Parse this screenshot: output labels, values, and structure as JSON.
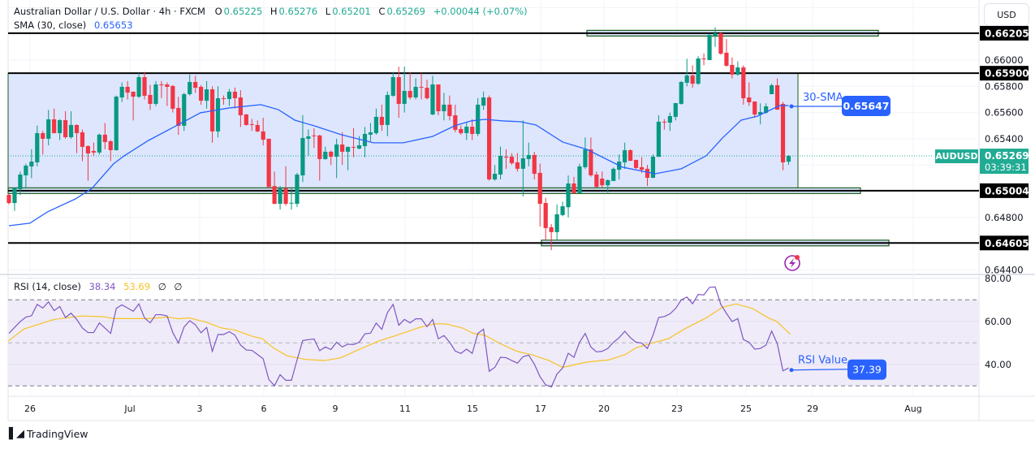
{
  "header": {
    "symbol_title": "Australian Dollar / U.S. Dollar · 4h · FXCM",
    "open_label": "O",
    "open": "0.65225",
    "high_label": "H",
    "high": "0.65276",
    "low_label": "L",
    "low": "0.65201",
    "close_label": "C",
    "close": "0.65269",
    "change": "+0.00044 (+0.07%)",
    "sma_label": "SMA (30, close)",
    "sma_value": "0.65653"
  },
  "rsi_legend": {
    "label": "RSI (14, close)",
    "rsi": "38.34",
    "ma": "53.69",
    "extra1": "∅",
    "extra2": "∅"
  },
  "currency_button": "USD",
  "branding": {
    "logo_mark": "TV",
    "name": "TradingView"
  },
  "colors": {
    "up": "#089981",
    "down": "#f23645",
    "sma": "#2962ff",
    "rsi": "#7e57c2",
    "rsi_ma": "#f7c325",
    "range_fill": "#dbe5fd",
    "zone_border": "#1b5e20",
    "last_price": "#22ab94",
    "callout": "#2962ff"
  },
  "annotations": {
    "sma_callout_label": "30-SMA",
    "sma_callout_value": "0.65647",
    "rsi_callout_label": "RSI Value",
    "rsi_callout_value": "37.39",
    "alert_icon": "lightning-icon"
  },
  "last_price": {
    "symbol": "AUDUSD",
    "price": "0.65269",
    "countdown": "03:39:31"
  },
  "chart_data": {
    "type": "candlestick",
    "interval": "4h",
    "price_axis": {
      "ylim": [
        0.6436,
        0.66465
      ],
      "ticks": [
        "0.66000",
        "0.65800",
        "0.65600",
        "0.65400",
        "0.64800",
        "0.64400"
      ]
    },
    "level_lines": [
      "0.66205",
      "0.65900",
      "0.65004",
      "0.64605"
    ],
    "x_ticks": [
      "26",
      "Jul",
      "3",
      "6",
      "9",
      "11",
      "15",
      "17",
      "20",
      "23",
      "25",
      "29",
      "Aug"
    ],
    "ohlc": [
      [
        0.64972,
        0.6498,
        0.649,
        0.6491
      ],
      [
        0.6491,
        0.65027,
        0.6485,
        0.65021
      ],
      [
        0.65015,
        0.6515,
        0.6497,
        0.65127
      ],
      [
        0.65121,
        0.6521,
        0.6502,
        0.65195
      ],
      [
        0.65189,
        0.6532,
        0.651,
        0.65226
      ],
      [
        0.6522,
        0.655,
        0.6519,
        0.65443
      ],
      [
        0.65443,
        0.6546,
        0.6528,
        0.654
      ],
      [
        0.654,
        0.6562,
        0.6535,
        0.65548
      ],
      [
        0.65548,
        0.6563,
        0.6544,
        0.65443
      ],
      [
        0.65443,
        0.6555,
        0.6539,
        0.65542
      ],
      [
        0.65542,
        0.6561,
        0.654,
        0.65412
      ],
      [
        0.65412,
        0.6561,
        0.654,
        0.65505
      ],
      [
        0.65505,
        0.6551,
        0.6529,
        0.65443
      ],
      [
        0.65449,
        0.6547,
        0.6523,
        0.65338
      ],
      [
        0.65344,
        0.6535,
        0.6508,
        0.65288
      ],
      [
        0.65307,
        0.6537,
        0.6527,
        0.65295
      ],
      [
        0.65295,
        0.6544,
        0.6528,
        0.65431
      ],
      [
        0.65431,
        0.6552,
        0.6532,
        0.65375
      ],
      [
        0.65381,
        0.6539,
        0.6523,
        0.65313
      ],
      [
        0.65313,
        0.6573,
        0.6531,
        0.65721
      ],
      [
        0.65715,
        0.6583,
        0.6568,
        0.65796
      ],
      [
        0.65796,
        0.6584,
        0.657,
        0.65752
      ],
      [
        0.65759,
        0.6576,
        0.6554,
        0.65721
      ],
      [
        0.65721,
        0.659,
        0.6571,
        0.6587
      ],
      [
        0.6587,
        0.6591,
        0.657,
        0.65728
      ],
      [
        0.65734,
        0.6581,
        0.6562,
        0.65666
      ],
      [
        0.65666,
        0.6584,
        0.6565,
        0.65814
      ],
      [
        0.65814,
        0.6584,
        0.6571,
        0.65812
      ],
      [
        0.65814,
        0.6583,
        0.6565,
        0.65796
      ],
      [
        0.65802,
        0.6581,
        0.656,
        0.65629
      ],
      [
        0.65635,
        0.6572,
        0.6543,
        0.65499
      ],
      [
        0.65499,
        0.6575,
        0.6546,
        0.6574
      ],
      [
        0.6574,
        0.6589,
        0.6573,
        0.65833
      ],
      [
        0.65833,
        0.6588,
        0.6575,
        0.65789
      ],
      [
        0.65796,
        0.6581,
        0.6566,
        0.6569
      ],
      [
        0.6569,
        0.6584,
        0.6563,
        0.65777
      ],
      [
        0.65777,
        0.658,
        0.6537,
        0.65456
      ],
      [
        0.65456,
        0.658,
        0.6541,
        0.65709
      ],
      [
        0.65709,
        0.6573,
        0.6566,
        0.65706
      ],
      [
        0.65703,
        0.6578,
        0.6565,
        0.65759
      ],
      [
        0.65759,
        0.6579,
        0.6563,
        0.65709
      ],
      [
        0.65715,
        0.6577,
        0.6549,
        0.65579
      ],
      [
        0.65585,
        0.6559,
        0.655,
        0.65505
      ],
      [
        0.65511,
        0.6555,
        0.6546,
        0.65508
      ],
      [
        0.65505,
        0.6554,
        0.6545,
        0.65456
      ],
      [
        0.65456,
        0.6556,
        0.6535,
        0.65393
      ],
      [
        0.654,
        0.654,
        0.6502,
        0.65033
      ],
      [
        0.65039,
        0.6515,
        0.649,
        0.64904
      ],
      [
        0.64904,
        0.6504,
        0.6486,
        0.65021
      ],
      [
        0.65021,
        0.6519,
        0.6489,
        0.64904
      ],
      [
        0.6491,
        0.6503,
        0.6486,
        0.64912
      ],
      [
        0.64904,
        0.6514,
        0.6488,
        0.65127
      ],
      [
        0.65121,
        0.6558,
        0.6507,
        0.65406
      ],
      [
        0.654,
        0.6547,
        0.6527,
        0.65418
      ],
      [
        0.65425,
        0.6548,
        0.6533,
        0.65422
      ],
      [
        0.65425,
        0.6543,
        0.6508,
        0.65245
      ],
      [
        0.65245,
        0.6534,
        0.6524,
        0.65301
      ],
      [
        0.65301,
        0.6531,
        0.652,
        0.65263
      ],
      [
        0.65263,
        0.654,
        0.651,
        0.65356
      ],
      [
        0.65356,
        0.6545,
        0.652,
        0.65301
      ],
      [
        0.65301,
        0.6534,
        0.6516,
        0.65338
      ],
      [
        0.65338,
        0.6548,
        0.6526,
        0.65335
      ],
      [
        0.65325,
        0.6542,
        0.6532,
        0.6535
      ],
      [
        0.65344,
        0.6549,
        0.6526,
        0.65437
      ],
      [
        0.65431,
        0.6552,
        0.6538,
        0.65449
      ],
      [
        0.65443,
        0.6563,
        0.6543,
        0.65567
      ],
      [
        0.65567,
        0.6566,
        0.6546,
        0.65505
      ],
      [
        0.65505,
        0.6576,
        0.6542,
        0.65734
      ],
      [
        0.65728,
        0.6591,
        0.6572,
        0.6587
      ],
      [
        0.6587,
        0.6595,
        0.6556,
        0.65666
      ],
      [
        0.65666,
        0.6595,
        0.656,
        0.65765
      ],
      [
        0.65765,
        0.6591,
        0.657,
        0.65715
      ],
      [
        0.65715,
        0.6586,
        0.657,
        0.65796
      ],
      [
        0.65796,
        0.659,
        0.657,
        0.65793
      ],
      [
        0.65789,
        0.6585,
        0.657,
        0.65709
      ],
      [
        0.65585,
        0.6588,
        0.6558,
        0.65814
      ],
      [
        0.65814,
        0.6581,
        0.6558,
        0.6561
      ],
      [
        0.6561,
        0.6575,
        0.6554,
        0.6566
      ],
      [
        0.6566,
        0.6573,
        0.6554,
        0.65573
      ],
      [
        0.65579,
        0.6566,
        0.6545,
        0.65468
      ],
      [
        0.65474,
        0.655,
        0.6543,
        0.65443
      ],
      [
        0.65443,
        0.6553,
        0.6539,
        0.65492
      ],
      [
        0.65492,
        0.6555,
        0.6539,
        0.65437
      ],
      [
        0.65437,
        0.6571,
        0.6542,
        0.6566
      ],
      [
        0.65653,
        0.6576,
        0.6562,
        0.65715
      ],
      [
        0.65715,
        0.6573,
        0.6508,
        0.6509
      ],
      [
        0.6509,
        0.652,
        0.6508,
        0.65133
      ],
      [
        0.65127,
        0.6534,
        0.6509,
        0.6527
      ],
      [
        0.65263,
        0.6532,
        0.6517,
        0.6526
      ],
      [
        0.65263,
        0.6529,
        0.652,
        0.65214
      ],
      [
        0.6522,
        0.6529,
        0.6515,
        0.65171
      ],
      [
        0.65171,
        0.6554,
        0.6496,
        0.65251
      ],
      [
        0.65245,
        0.6537,
        0.6519,
        0.65276
      ],
      [
        0.65276,
        0.653,
        0.6509,
        0.65133
      ],
      [
        0.6514,
        0.6521,
        0.6473,
        0.64904
      ],
      [
        0.6491,
        0.6495,
        0.6463,
        0.64719
      ],
      [
        0.64725,
        0.6475,
        0.6455,
        0.64688
      ],
      [
        0.64688,
        0.649,
        0.6463,
        0.64824
      ],
      [
        0.64818,
        0.6492,
        0.6481,
        0.64885
      ],
      [
        0.64878,
        0.6512,
        0.648,
        0.65059
      ],
      [
        0.65059,
        0.6511,
        0.6498,
        0.64985
      ],
      [
        0.64985,
        0.6521,
        0.6498,
        0.65189
      ],
      [
        0.65183,
        0.6541,
        0.6517,
        0.65319
      ],
      [
        0.65319,
        0.6541,
        0.6511,
        0.65121
      ],
      [
        0.65127,
        0.6515,
        0.6503,
        0.65033
      ],
      [
        0.65096,
        0.6515,
        0.6503,
        0.65045
      ],
      [
        0.65045,
        0.6509,
        0.6499,
        0.65084
      ],
      [
        0.65078,
        0.6518,
        0.6508,
        0.65171
      ],
      [
        0.65164,
        0.6528,
        0.6509,
        0.65226
      ],
      [
        0.6522,
        0.6537,
        0.6517,
        0.65313
      ],
      [
        0.65313,
        0.6532,
        0.6523,
        0.65232
      ],
      [
        0.65239,
        0.6524,
        0.6517,
        0.65177
      ],
      [
        0.65183,
        0.6526,
        0.6514,
        0.65164
      ],
      [
        0.65171,
        0.652,
        0.6504,
        0.65102
      ],
      [
        0.65102,
        0.6528,
        0.651,
        0.65263
      ],
      [
        0.65263,
        0.6558,
        0.6526,
        0.6553
      ],
      [
        0.6553,
        0.6555,
        0.6547,
        0.65527
      ],
      [
        0.65523,
        0.656,
        0.6546,
        0.65573
      ],
      [
        0.65567,
        0.6567,
        0.6554,
        0.65672
      ],
      [
        0.65666,
        0.6584,
        0.6566,
        0.65833
      ],
      [
        0.65827,
        0.6601,
        0.658,
        0.65882
      ],
      [
        0.65882,
        0.6596,
        0.6579,
        0.6582
      ],
      [
        0.6582,
        0.6603,
        0.6581,
        0.66012
      ],
      [
        0.66012,
        0.6605,
        0.6596,
        0.66009
      ],
      [
        0.66,
        0.662,
        0.66,
        0.66192
      ],
      [
        0.66186,
        0.6625,
        0.661,
        0.66204
      ],
      [
        0.66204,
        0.6621,
        0.6604,
        0.66049
      ],
      [
        0.66056,
        0.6616,
        0.6595,
        0.65957
      ],
      [
        0.65963,
        0.6602,
        0.6586,
        0.65889
      ],
      [
        0.65889,
        0.6599,
        0.6588,
        0.65944
      ],
      [
        0.65944,
        0.6596,
        0.6566,
        0.65709
      ],
      [
        0.65715,
        0.6583,
        0.6565,
        0.65678
      ],
      [
        0.65684,
        0.65684,
        0.6556,
        0.65585
      ],
      [
        0.65585,
        0.6567,
        0.6551,
        0.65604
      ],
      [
        0.65598,
        0.6567,
        0.6559,
        0.65647
      ],
      [
        0.6574,
        0.6582,
        0.6574,
        0.65808
      ],
      [
        0.65808,
        0.6586,
        0.6562,
        0.65622
      ],
      [
        0.65666,
        0.6568,
        0.6516,
        0.6522
      ],
      [
        0.65225,
        0.65276,
        0.65201,
        0.65269
      ]
    ],
    "sma30": [
      [
        1,
        0.64737
      ],
      [
        4.7,
        0.64756
      ],
      [
        7.8,
        0.64842
      ],
      [
        12.8,
        0.64942
      ],
      [
        15.7,
        0.65022
      ],
      [
        19.5,
        0.65208
      ],
      [
        21.4,
        0.6527
      ],
      [
        25.7,
        0.65387
      ],
      [
        30.6,
        0.65499
      ],
      [
        34.9,
        0.65598
      ],
      [
        40,
        0.65635
      ],
      [
        45.6,
        0.6566
      ],
      [
        48.7,
        0.65622
      ],
      [
        51.6,
        0.65542
      ],
      [
        55,
        0.65499
      ],
      [
        59.8,
        0.65431
      ],
      [
        65.5,
        0.65369
      ],
      [
        70.8,
        0.65369
      ],
      [
        76,
        0.65418
      ],
      [
        79.9,
        0.65499
      ],
      [
        82.8,
        0.65536
      ],
      [
        85.2,
        0.65548
      ],
      [
        88.5,
        0.65536
      ],
      [
        91.5,
        0.6553
      ],
      [
        94.3,
        0.65505
      ],
      [
        99,
        0.65375
      ],
      [
        103.3,
        0.65319
      ],
      [
        109.6,
        0.65183
      ],
      [
        115.4,
        0.65133
      ],
      [
        120,
        0.65171
      ],
      [
        124.4,
        0.6527
      ],
      [
        127.3,
        0.65406
      ],
      [
        130.6,
        0.65542
      ],
      [
        133.5,
        0.65573
      ],
      [
        137.4,
        0.65653
      ],
      [
        139,
        0.65653
      ]
    ],
    "rsi_axis": {
      "ylim": [
        30,
        80
      ],
      "ticks": [
        "80.00",
        "60.00",
        "40.00"
      ],
      "bands": [
        70,
        50,
        30
      ]
    },
    "rsi": [
      54.4,
      57.2,
      59.9,
      62.0,
      62.6,
      67.9,
      66.2,
      69.1,
      65.0,
      66.9,
      61.8,
      63.8,
      60.9,
      56.9,
      54.8,
      54.8,
      59.3,
      56.9,
      54.4,
      66.0,
      67.7,
      66.2,
      64.7,
      68.1,
      61.6,
      59.3,
      63.1,
      63.1,
      62.5,
      54.8,
      49.9,
      57.4,
      60.3,
      58.4,
      54.7,
      57.2,
      46.1,
      53.9,
      53.9,
      55.2,
      53.6,
      49.0,
      46.7,
      46.5,
      44.6,
      42.6,
      33.0,
      30.1,
      35.2,
      32.6,
      32.6,
      42.1,
      51.1,
      51.5,
      51.8,
      46.4,
      48.1,
      46.9,
      50.3,
      48.1,
      49.4,
      49.2,
      50.3,
      54.2,
      54.5,
      59.2,
      56.3,
      64.1,
      67.9,
      58.2,
      60.9,
      59.3,
      61.2,
      61.2,
      57.5,
      60.9,
      51.9,
      53.4,
      50.3,
      46.2,
      45.1,
      47.1,
      45.1,
      54.4,
      56.4,
      36.8,
      38.6,
      43.3,
      43.1,
      41.8,
      40.6,
      43.6,
      44.3,
      40.1,
      34.3,
      30.5,
      29.5,
      35.5,
      38.3,
      45.2,
      43.3,
      50.3,
      54.4,
      48.1,
      45.8,
      46.1,
      47.4,
      50.3,
      52.4,
      55.4,
      52.4,
      50.3,
      49.9,
      47.4,
      53.6,
      61.8,
      62.2,
      63.5,
      66.0,
      70.0,
      71.3,
      68.2,
      72.5,
      72.3,
      75.8,
      76.0,
      67.9,
      63.7,
      59.9,
      61.3,
      51.5,
      50.3,
      47.1,
      47.4,
      49.0,
      55.5,
      49.6,
      37.0,
      38.34
    ],
    "rsi_ma": [
      [
        0.9,
        50.9
      ],
      [
        3.7,
        56.5
      ],
      [
        9,
        60.9
      ],
      [
        13.8,
        62.5
      ],
      [
        17.6,
        62.2
      ],
      [
        19.5,
        61.3
      ],
      [
        25.8,
        61.3
      ],
      [
        29.1,
        62.0
      ],
      [
        31,
        61.2
      ],
      [
        32.9,
        61.6
      ],
      [
        35.8,
        59.7
      ],
      [
        38.7,
        56.9
      ],
      [
        41.1,
        55.9
      ],
      [
        44,
        53.1
      ],
      [
        45.9,
        51.9
      ],
      [
        47.8,
        47.7
      ],
      [
        50.2,
        44.0
      ],
      [
        53.5,
        42.3
      ],
      [
        56.9,
        41.8
      ],
      [
        59.8,
        43.1
      ],
      [
        62.6,
        46.5
      ],
      [
        66.5,
        50.9
      ],
      [
        71.3,
        55.0
      ],
      [
        73.7,
        57.2
      ],
      [
        76.5,
        58.9
      ],
      [
        78.4,
        58.8
      ],
      [
        81.3,
        56.9
      ],
      [
        83.2,
        54.4
      ],
      [
        85.2,
        53.6
      ],
      [
        88,
        49.6
      ],
      [
        90.9,
        46.1
      ],
      [
        93.8,
        44.3
      ],
      [
        96.6,
        41.8
      ],
      [
        99,
        38.6
      ],
      [
        103.3,
        41.1
      ],
      [
        107.2,
        42.1
      ],
      [
        110.1,
        44.6
      ],
      [
        112,
        47.7
      ],
      [
        114.8,
        49.9
      ],
      [
        117.7,
        51.9
      ],
      [
        120.6,
        56.5
      ],
      [
        124.4,
        61.6
      ],
      [
        127.3,
        66.6
      ],
      [
        129.7,
        68.1
      ],
      [
        132.6,
        66.0
      ],
      [
        135.4,
        61.6
      ],
      [
        136.9,
        60.0
      ],
      [
        139.3,
        54.0
      ]
    ]
  }
}
